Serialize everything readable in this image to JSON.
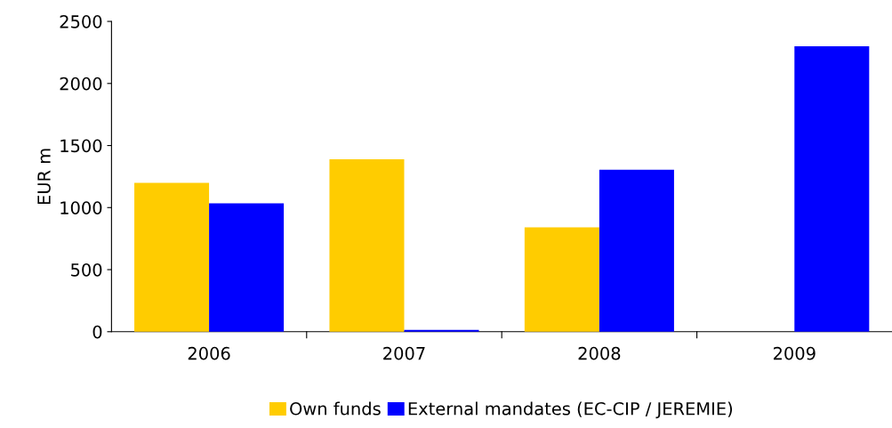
{
  "chart_data": {
    "type": "bar",
    "ylabel": "EUR m",
    "categories": [
      "2006",
      "2007",
      "2008",
      "2009"
    ],
    "series": [
      {
        "name": "Own funds",
        "color": "#ffcc00",
        "values": [
          1200,
          1390,
          840,
          null
        ]
      },
      {
        "name": "External mandates (EC-CIP / JEREMIE)",
        "color": "#0000ff",
        "values": [
          1035,
          15,
          1305,
          2300
        ]
      }
    ],
    "ylim": [
      0,
      2500
    ],
    "yticks": [
      0,
      500,
      1000,
      1500,
      2000,
      2500
    ],
    "grid": false,
    "legend": "bottom"
  }
}
